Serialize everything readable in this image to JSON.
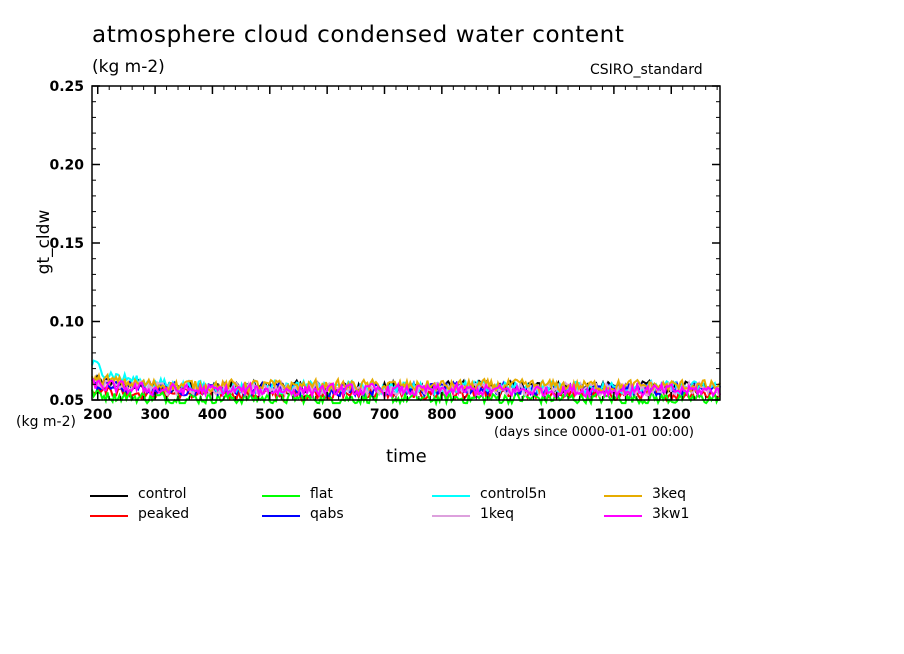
{
  "chart_data": {
    "type": "line",
    "title": "atmosphere cloud condensed water content",
    "units": "(kg m-2)",
    "source_label": "CSIRO_standard",
    "ylabel": "gt_cldw",
    "yunits_bottom": "(kg m-2)",
    "xlabel": "time",
    "xaxis_note": "(days since 0000-01-01 00:00)",
    "ylim": [
      0.05,
      0.25
    ],
    "xlim": [
      190,
      1285
    ],
    "yticks": [
      "0.05",
      "0.10",
      "0.15",
      "0.20",
      "0.25"
    ],
    "xticks": [
      "200",
      "300",
      "400",
      "500",
      "600",
      "700",
      "800",
      "900",
      "1000",
      "1100",
      "1200"
    ],
    "grid": false,
    "legend_position": "bottom",
    "series": [
      {
        "name": "control",
        "color": "#000000",
        "mean": 0.058,
        "start": 0.062
      },
      {
        "name": "peaked",
        "color": "#ff0000",
        "mean": 0.054,
        "start": 0.058
      },
      {
        "name": "flat",
        "color": "#00ff00",
        "mean": 0.051,
        "start": 0.054
      },
      {
        "name": "qabs",
        "color": "#0000ff",
        "mean": 0.057,
        "start": 0.06
      },
      {
        "name": "control5n",
        "color": "#00ffff",
        "mean": 0.058,
        "start": 0.073
      },
      {
        "name": "1keq",
        "color": "#dda0dd",
        "mean": 0.057,
        "start": 0.062
      },
      {
        "name": "3keq",
        "color": "#e6ac00",
        "mean": 0.059,
        "start": 0.064
      },
      {
        "name": "3kw1",
        "color": "#ff00ff",
        "mean": 0.056,
        "start": 0.06
      }
    ]
  }
}
